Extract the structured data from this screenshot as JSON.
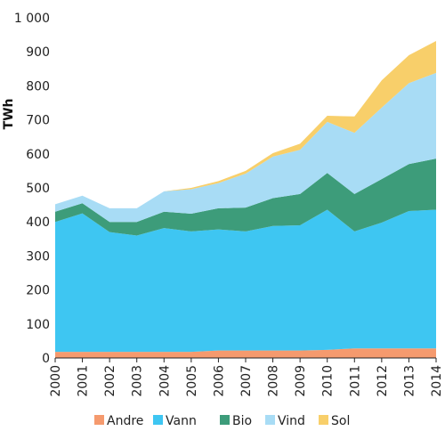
{
  "chart_data": {
    "type": "area",
    "stacked": true,
    "ylabel": "TWh",
    "xlabel": "",
    "title": "",
    "ylim": [
      0,
      1000
    ],
    "yticks": [
      {
        "value": 0,
        "label": "0"
      },
      {
        "value": 100,
        "label": "100"
      },
      {
        "value": 200,
        "label": "200"
      },
      {
        "value": 300,
        "label": "300"
      },
      {
        "value": 400,
        "label": "400"
      },
      {
        "value": 500,
        "label": "500"
      },
      {
        "value": 600,
        "label": "600"
      },
      {
        "value": 700,
        "label": "700"
      },
      {
        "value": 800,
        "label": "800"
      },
      {
        "value": 900,
        "label": "900"
      },
      {
        "value": 1000,
        "label": "1 000"
      }
    ],
    "x": [
      "2000",
      "2001",
      "2002",
      "2003",
      "2004",
      "2005",
      "2006",
      "2007",
      "2008",
      "2009",
      "2010",
      "2011",
      "2012",
      "2013",
      "2014"
    ],
    "grid": false,
    "legend_position": "bottom",
    "series": [
      {
        "name": "Andre",
        "color": "#f59a6e",
        "values": [
          18,
          18,
          18,
          18,
          18,
          18,
          22,
          22,
          22,
          22,
          24,
          28,
          28,
          28,
          28
        ]
      },
      {
        "name": "Vann",
        "color": "#3ec6f2",
        "values": [
          382,
          407,
          352,
          342,
          364,
          354,
          356,
          350,
          366,
          368,
          412,
          344,
          370,
          404,
          408
        ]
      },
      {
        "name": "Bio",
        "color": "#3d9c7a",
        "values": [
          30,
          30,
          30,
          40,
          48,
          52,
          62,
          70,
          82,
          92,
          108,
          110,
          128,
          138,
          150
        ]
      },
      {
        "name": "Vind",
        "color": "#a8dcf5",
        "values": [
          22,
          22,
          40,
          40,
          60,
          72,
          74,
          100,
          122,
          130,
          150,
          180,
          210,
          238,
          252
        ]
      },
      {
        "name": "Sol",
        "color": "#f8cf6a",
        "values": [
          0,
          0,
          0,
          0,
          0,
          4,
          6,
          8,
          10,
          18,
          18,
          48,
          80,
          82,
          94
        ]
      }
    ]
  }
}
